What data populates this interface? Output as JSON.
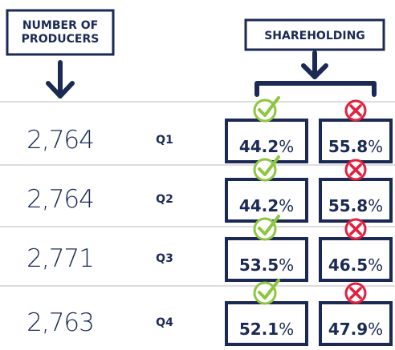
{
  "header": {
    "producers": "NUMBER OF PRODUCERS",
    "shareholding": "SHAREHOLDING"
  },
  "rows": [
    {
      "producers": "2,764",
      "quarter": "Q1",
      "yes": "44.2%",
      "no": "55.8%"
    },
    {
      "producers": "2,764",
      "quarter": "Q2",
      "yes": "44.2%",
      "no": "55.8%"
    },
    {
      "producers": "2,771",
      "quarter": "Q3",
      "yes": "53.5%",
      "no": "46.5%"
    },
    {
      "producers": "2,763",
      "quarter": "Q4",
      "yes": "52.1%",
      "no": "47.9%"
    }
  ]
}
